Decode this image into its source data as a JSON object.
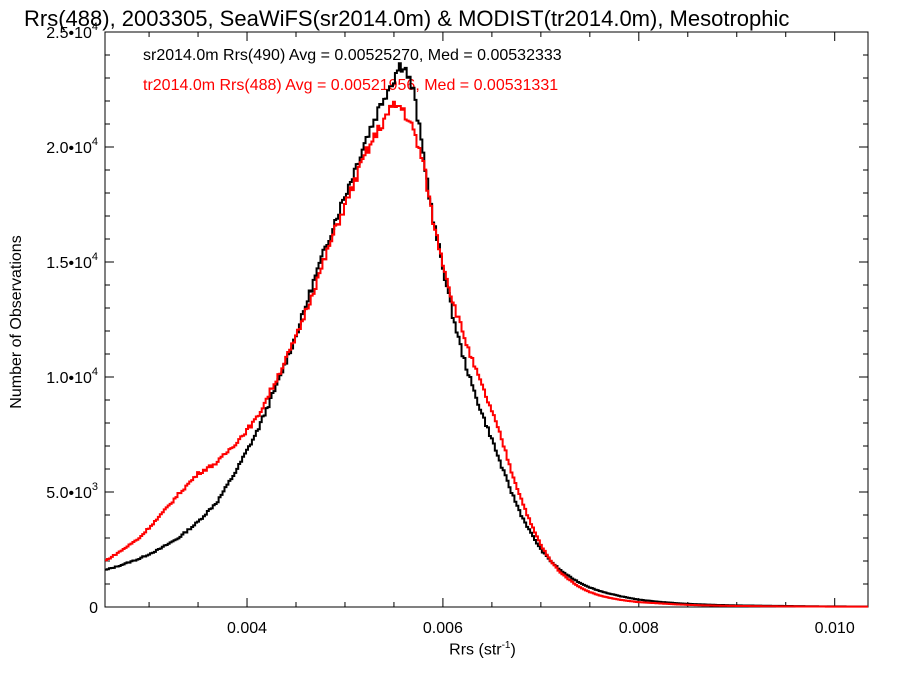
{
  "chart_data": {
    "type": "line",
    "title": "Rrs(488), 2003305, SeaWiFS(sr2014.0m) & MODIST(tr2014.0m), Mesotrophic",
    "xlabel": "Rrs (str",
    "xlabel_sup": "-1",
    "xlabel_end": ")",
    "ylabel": "Number of Observations",
    "xlim": [
      0.00255,
      0.01034
    ],
    "ylim": [
      0,
      25000
    ],
    "xticks": [
      {
        "value": 0.004,
        "label": "0.004"
      },
      {
        "value": 0.006,
        "label": "0.006"
      },
      {
        "value": 0.008,
        "label": "0.008"
      },
      {
        "value": 0.01,
        "label": "0.010"
      }
    ],
    "yticks": [
      {
        "value": 0,
        "mant": "0",
        "exp": ""
      },
      {
        "value": 5000,
        "mant": "5.0•10",
        "exp": "3"
      },
      {
        "value": 10000,
        "mant": "1.0•10",
        "exp": "4"
      },
      {
        "value": 15000,
        "mant": "1.5•10",
        "exp": "4"
      },
      {
        "value": 20000,
        "mant": "2.0•10",
        "exp": "4"
      },
      {
        "value": 25000,
        "mant": "2.5•10",
        "exp": "4"
      }
    ],
    "legend": [
      "sr2014.0m Rrs(490) Avg = 0.00525270, Med = 0.00532333",
      "tr2014.0m Rrs(488) Avg = 0.00521956, Med = 0.00531331"
    ],
    "series": [
      {
        "color": "#000000",
        "x": [
          0.00255,
          0.0027,
          0.0029,
          0.0031,
          0.0033,
          0.0035,
          0.0037,
          0.0039,
          0.0041,
          0.0043,
          0.0045,
          0.0047,
          0.0049,
          0.0051,
          0.0052,
          0.0053,
          0.0054,
          0.0055,
          0.00555,
          0.0056,
          0.0057,
          0.0058,
          0.0059,
          0.006,
          0.0061,
          0.0062,
          0.0063,
          0.0064,
          0.0065,
          0.0066,
          0.0067,
          0.0068,
          0.0069,
          0.007,
          0.0071,
          0.0072,
          0.0073,
          0.0074,
          0.0075,
          0.0076,
          0.0077,
          0.0078,
          0.0079,
          0.008,
          0.0082,
          0.0084,
          0.0086,
          0.0088,
          0.009,
          0.0094,
          0.0098,
          0.01034
        ],
        "y": [
          1600,
          1800,
          2100,
          2500,
          3000,
          3700,
          4600,
          6000,
          7600,
          9600,
          11800,
          14400,
          16800,
          19000,
          20200,
          21200,
          22200,
          23000,
          23500,
          23600,
          22400,
          19700,
          16800,
          14800,
          12700,
          11000,
          9600,
          8400,
          7300,
          6100,
          5000,
          4000,
          3200,
          2500,
          2000,
          1600,
          1300,
          1050,
          850,
          700,
          580,
          480,
          400,
          320,
          230,
          160,
          120,
          90,
          70,
          50,
          30,
          20
        ]
      },
      {
        "color": "#ff0000",
        "x": [
          0.00255,
          0.0027,
          0.0029,
          0.0031,
          0.0033,
          0.0035,
          0.0037,
          0.0039,
          0.0041,
          0.0043,
          0.0045,
          0.0047,
          0.0049,
          0.0051,
          0.0052,
          0.0053,
          0.0054,
          0.0055,
          0.00555,
          0.0056,
          0.0057,
          0.0058,
          0.0059,
          0.006,
          0.0061,
          0.0062,
          0.0063,
          0.0064,
          0.0065,
          0.0066,
          0.0067,
          0.0068,
          0.0069,
          0.007,
          0.0071,
          0.0072,
          0.0073,
          0.0074,
          0.0075,
          0.0076,
          0.0077,
          0.0078,
          0.0079,
          0.008,
          0.0082,
          0.0084,
          0.0086,
          0.0088,
          0.009,
          0.0094,
          0.0098,
          0.01034
        ],
        "y": [
          2000,
          2400,
          3000,
          3900,
          4900,
          5800,
          6300,
          7200,
          8200,
          9900,
          11700,
          14000,
          16400,
          18500,
          19600,
          20400,
          21200,
          21800,
          21800,
          21600,
          20700,
          19300,
          16800,
          15000,
          13300,
          12000,
          10700,
          9600,
          8500,
          7300,
          5900,
          4700,
          3600,
          2700,
          2000,
          1500,
          1150,
          850,
          650,
          500,
          400,
          320,
          260,
          210,
          160,
          110,
          80,
          60,
          45,
          30,
          20,
          15
        ]
      }
    ]
  }
}
